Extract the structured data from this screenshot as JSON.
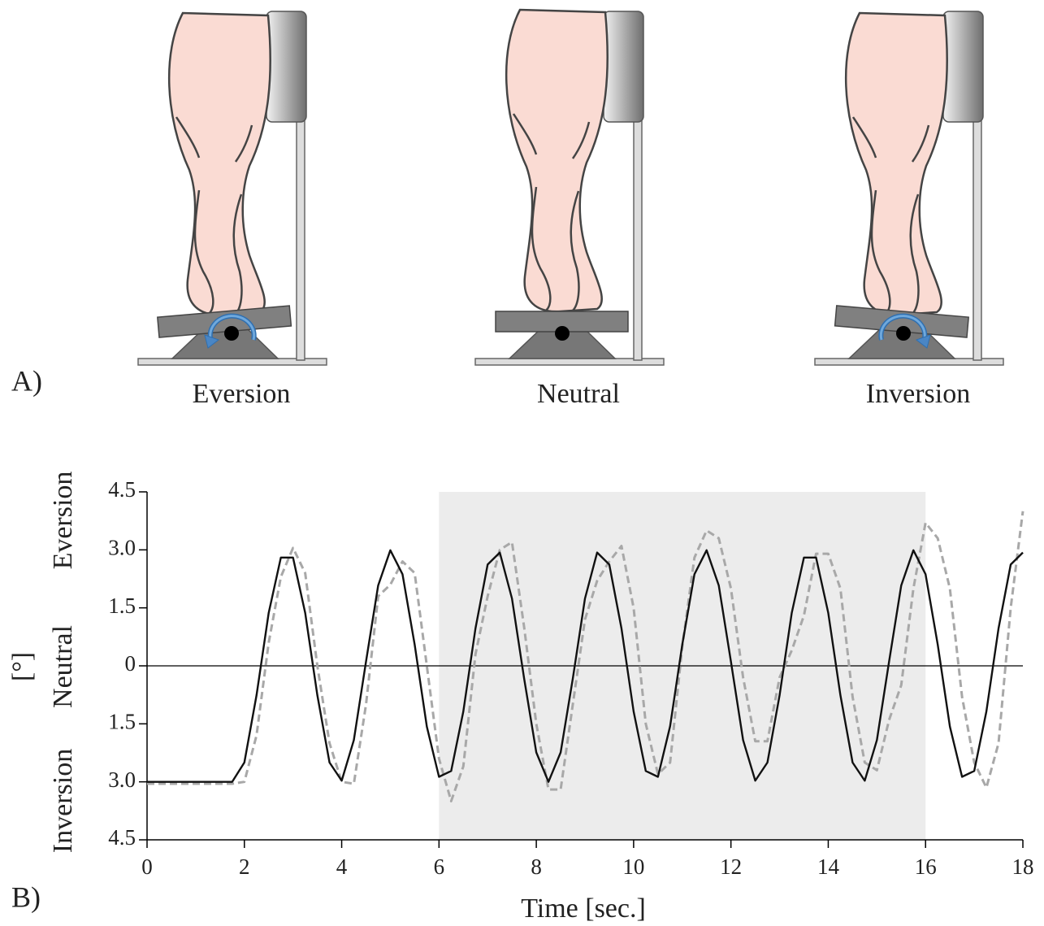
{
  "figure": {
    "panels": [
      "A)",
      "B)"
    ],
    "illustration_labels": [
      "Eversion",
      "Neutral",
      "Inversion"
    ]
  },
  "chart_data": {
    "type": "line",
    "xlabel": "Time [sec.]",
    "ylabel": "[°]",
    "y_side_labels": [
      "Eversion",
      "Neutral",
      "Inversion"
    ],
    "xlim": [
      0,
      18
    ],
    "xticks": [
      0,
      2,
      4,
      6,
      8,
      10,
      12,
      14,
      16,
      18
    ],
    "ylim": [
      -4.5,
      4.5
    ],
    "yticks": [
      {
        "value": -4.5,
        "label": "4.5"
      },
      {
        "value": -3,
        "label": "3.0"
      },
      {
        "value": -1.5,
        "label": "1.5"
      },
      0,
      {
        "value": 1.5,
        "label": "1.5"
      },
      {
        "value": 3,
        "label": "3.0"
      },
      {
        "value": 4.5,
        "label": "4.5"
      }
    ],
    "highlight": [
      6,
      16
    ],
    "highlight_color": "#ececec",
    "zero_line": 0,
    "x": [
      0,
      0.25,
      0.5,
      0.75,
      1,
      1.25,
      1.5,
      1.75,
      2,
      2.25,
      2.5,
      2.75,
      3,
      3.25,
      3.5,
      3.75,
      4,
      4.25,
      4.5,
      4.75,
      5,
      5.25,
      5.5,
      5.75,
      6,
      6.25,
      6.5,
      6.75,
      7,
      7.25,
      7.5,
      7.75,
      8,
      8.25,
      8.5,
      8.75,
      9,
      9.25,
      9.5,
      9.75,
      10,
      10.25,
      10.5,
      10.75,
      11,
      11.25,
      11.5,
      11.75,
      12,
      12.25,
      12.5,
      12.75,
      13,
      13.25,
      13.5,
      13.75,
      14,
      14.25,
      14.5,
      14.75,
      15,
      15.25,
      15.5,
      15.75,
      16,
      16.25,
      16.5,
      16.75,
      17,
      17.25,
      17.5,
      17.75,
      18
    ],
    "series": [
      {
        "color": "#111111",
        "dash": false,
        "values": [
          -3,
          -3,
          -3,
          -3,
          -3,
          -3,
          -3,
          -3,
          -2.5,
          -0.76,
          1.37,
          2.8,
          2.8,
          1.37,
          -0.76,
          -2.5,
          -2.97,
          -1.92,
          0.11,
          2.08,
          2.99,
          2.37,
          0.55,
          -1.57,
          -2.87,
          -2.72,
          -1.18,
          0.97,
          2.62,
          2.93,
          1.74,
          -0.33,
          -2.24,
          -3,
          -2.24,
          -0.33,
          1.74,
          2.93,
          2.62,
          0.97,
          -1.18,
          -2.72,
          -2.87,
          -1.56,
          0.55,
          2.37,
          2.99,
          2.08,
          0.11,
          -1.92,
          -2.97,
          -2.5,
          -0.76,
          1.37,
          2.8,
          2.8,
          1.37,
          -0.76,
          -2.5,
          -2.97,
          -1.92,
          0.11,
          2.08,
          2.99,
          2.37,
          0.55,
          -1.57,
          -2.87,
          -2.72,
          -1.18,
          0.97,
          2.62,
          2.93
        ]
      },
      {
        "color": "#a8a8a8",
        "dash": true,
        "values": [
          -3.05,
          -3.05,
          -3.05,
          -3.05,
          -3.05,
          -3.05,
          -3.05,
          -3.05,
          -3,
          -1.8,
          0.6,
          2.3,
          3.05,
          2.4,
          0,
          -2,
          -3,
          -3.05,
          -1,
          1.8,
          2.1,
          2.7,
          2.4,
          0,
          -2.4,
          -3.5,
          -2.6,
          0.3,
          1.8,
          3,
          3.2,
          1,
          -1.5,
          -3.2,
          -3.2,
          -1,
          1.2,
          2.2,
          2.7,
          3.1,
          1.5,
          -1.5,
          -2.8,
          -2.5,
          0.5,
          2.8,
          3.5,
          3.3,
          2,
          -0.3,
          -1.95,
          -1.95,
          -0.3,
          0.4,
          1.3,
          2.9,
          2.9,
          2,
          -0.8,
          -2.5,
          -2.7,
          -1.4,
          -0.5,
          2,
          3.7,
          3.3,
          2,
          -0.8,
          -2.5,
          -3.15,
          -2,
          1.5,
          4
        ]
      }
    ]
  }
}
